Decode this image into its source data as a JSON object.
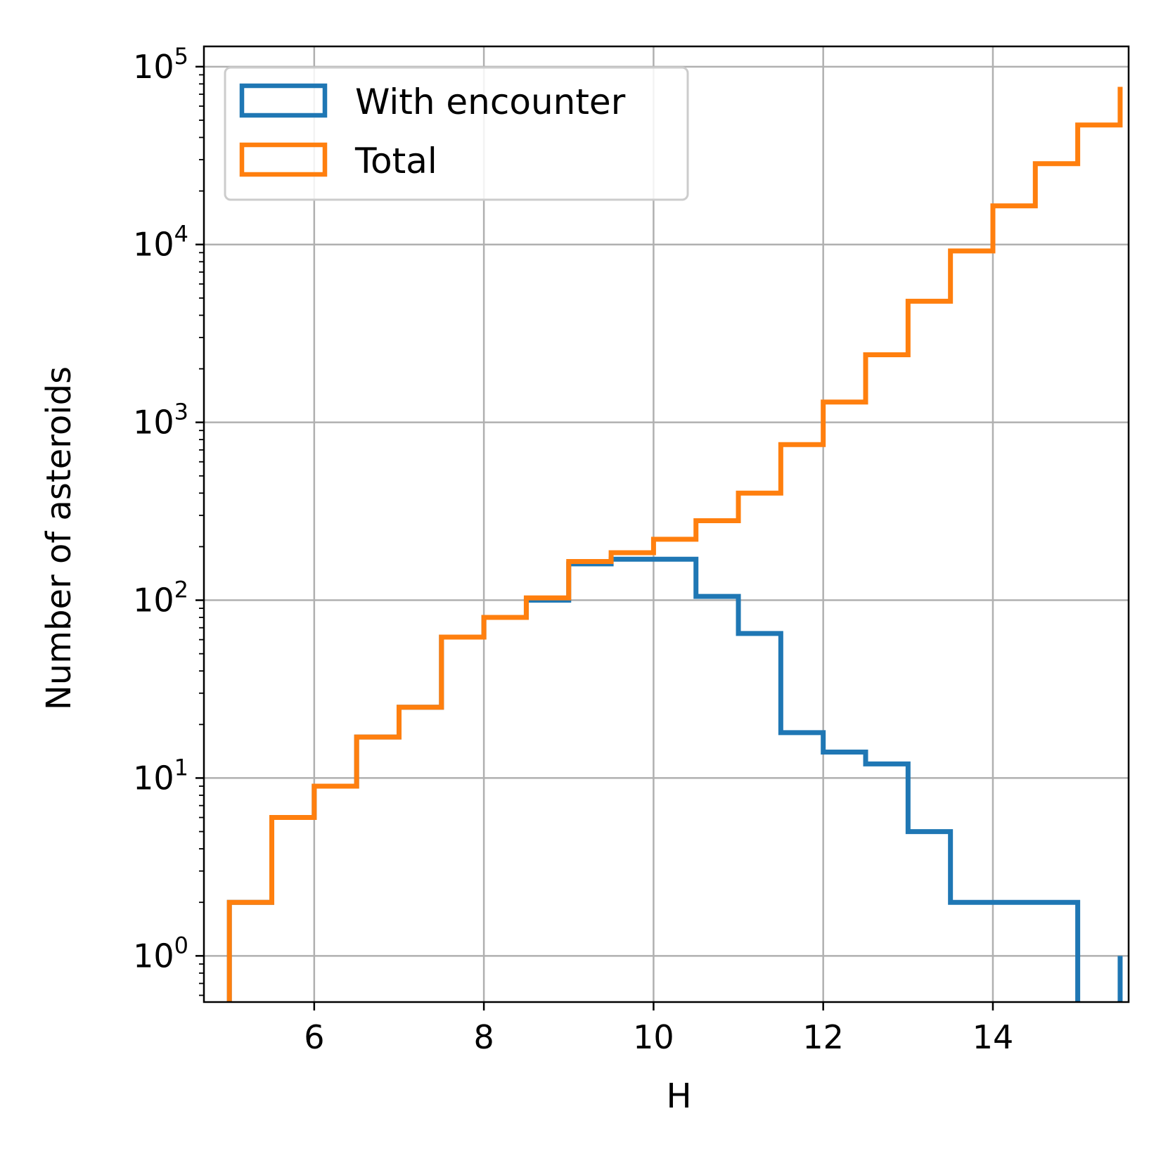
{
  "chart_data": {
    "type": "line",
    "subtype": "step-histogram",
    "title": "",
    "xlabel": "H",
    "ylabel": "Number of asteroids",
    "xlim": [
      4.7,
      15.6
    ],
    "ylim": [
      0.55,
      130000
    ],
    "yscale": "log",
    "grid": true,
    "legend_position": "top-left",
    "x_ticks": [
      6,
      8,
      10,
      12,
      14
    ],
    "x_tick_labels": [
      "6",
      "8",
      "10",
      "12",
      "14"
    ],
    "y_ticks": [
      1,
      10,
      100,
      1000,
      10000,
      100000
    ],
    "y_tick_bases": [
      "10",
      "10",
      "10",
      "10",
      "10",
      "10"
    ],
    "y_tick_exponents": [
      "0",
      "1",
      "2",
      "3",
      "4",
      "5"
    ],
    "bin_edges": [
      5.0,
      5.5,
      6.0,
      6.5,
      7.0,
      7.5,
      8.0,
      8.5,
      9.0,
      9.5,
      10.0,
      10.5,
      11.0,
      11.5,
      12.0,
      12.5,
      13.0,
      13.5,
      14.0,
      14.5,
      15.0,
      15.5
    ],
    "series": [
      {
        "name": "With encounter",
        "color": "#1f77b4",
        "values": [
          2,
          6,
          9,
          17,
          25,
          62,
          80,
          100,
          160,
          170,
          170,
          105,
          65,
          18,
          14,
          12,
          5,
          2,
          2,
          2,
          0,
          1
        ]
      },
      {
        "name": "Total",
        "color": "#ff7f0e",
        "values": [
          2,
          6,
          9,
          17,
          25,
          62,
          80,
          103,
          165,
          185,
          220,
          280,
          400,
          750,
          1300,
          2400,
          4800,
          9200,
          16500,
          28500,
          47000,
          77000
        ]
      }
    ]
  }
}
